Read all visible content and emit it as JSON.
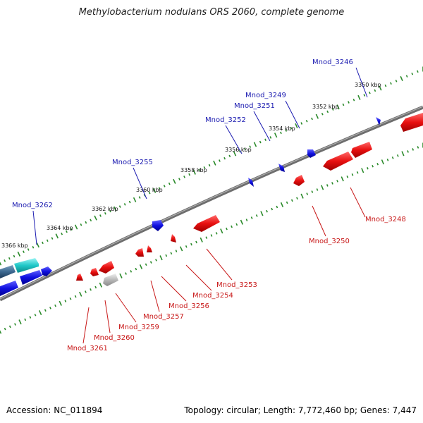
{
  "title": "Methylobacterium nodulans ORS 2060, complete genome",
  "footer": {
    "accession": "Accession: NC_011894",
    "summary": "Topology: circular; Length: 7,772,460 bp; Genes: 7,447"
  },
  "colors": {
    "backbone": "#6e6e6e",
    "tick_dot": "#2a8a2a",
    "plus_gene": "#1010e0",
    "minus_gene": "#e01010",
    "plus_label": "#1a1ab0",
    "minus_label": "#c81818",
    "hypothetical_gene": "#20c8c8",
    "other_gene": "#b8b8b8"
  },
  "coordinates": [
    {
      "label": "3350 kbp",
      "kbp": 3350
    },
    {
      "label": "3352 kbp",
      "kbp": 3352
    },
    {
      "label": "3354 kbp",
      "kbp": 3354
    },
    {
      "label": "3356 kbp",
      "kbp": 3356
    },
    {
      "label": "3358 kbp",
      "kbp": 3358
    },
    {
      "label": "3360 kbp",
      "kbp": 3360
    },
    {
      "label": "3362 kbp",
      "kbp": 3362
    },
    {
      "label": "3364 kbp",
      "kbp": 3364
    },
    {
      "label": "3366 kbp",
      "kbp": 3366
    }
  ],
  "plus_genes": [
    {
      "name": "Mnod_3246"
    },
    {
      "name": "Mnod_3249"
    },
    {
      "name": "Mnod_3251"
    },
    {
      "name": "Mnod_3252"
    },
    {
      "name": "Mnod_3255"
    },
    {
      "name": "Mnod_3262"
    }
  ],
  "minus_genes": [
    {
      "name": "Mnod_3248"
    },
    {
      "name": "Mnod_3250"
    },
    {
      "name": "Mnod_3253"
    },
    {
      "name": "Mnod_3254"
    },
    {
      "name": "Mnod_3256"
    },
    {
      "name": "Mnod_3257"
    },
    {
      "name": "Mnod_3259"
    },
    {
      "name": "Mnod_3260"
    },
    {
      "name": "Mnod_3261"
    }
  ]
}
